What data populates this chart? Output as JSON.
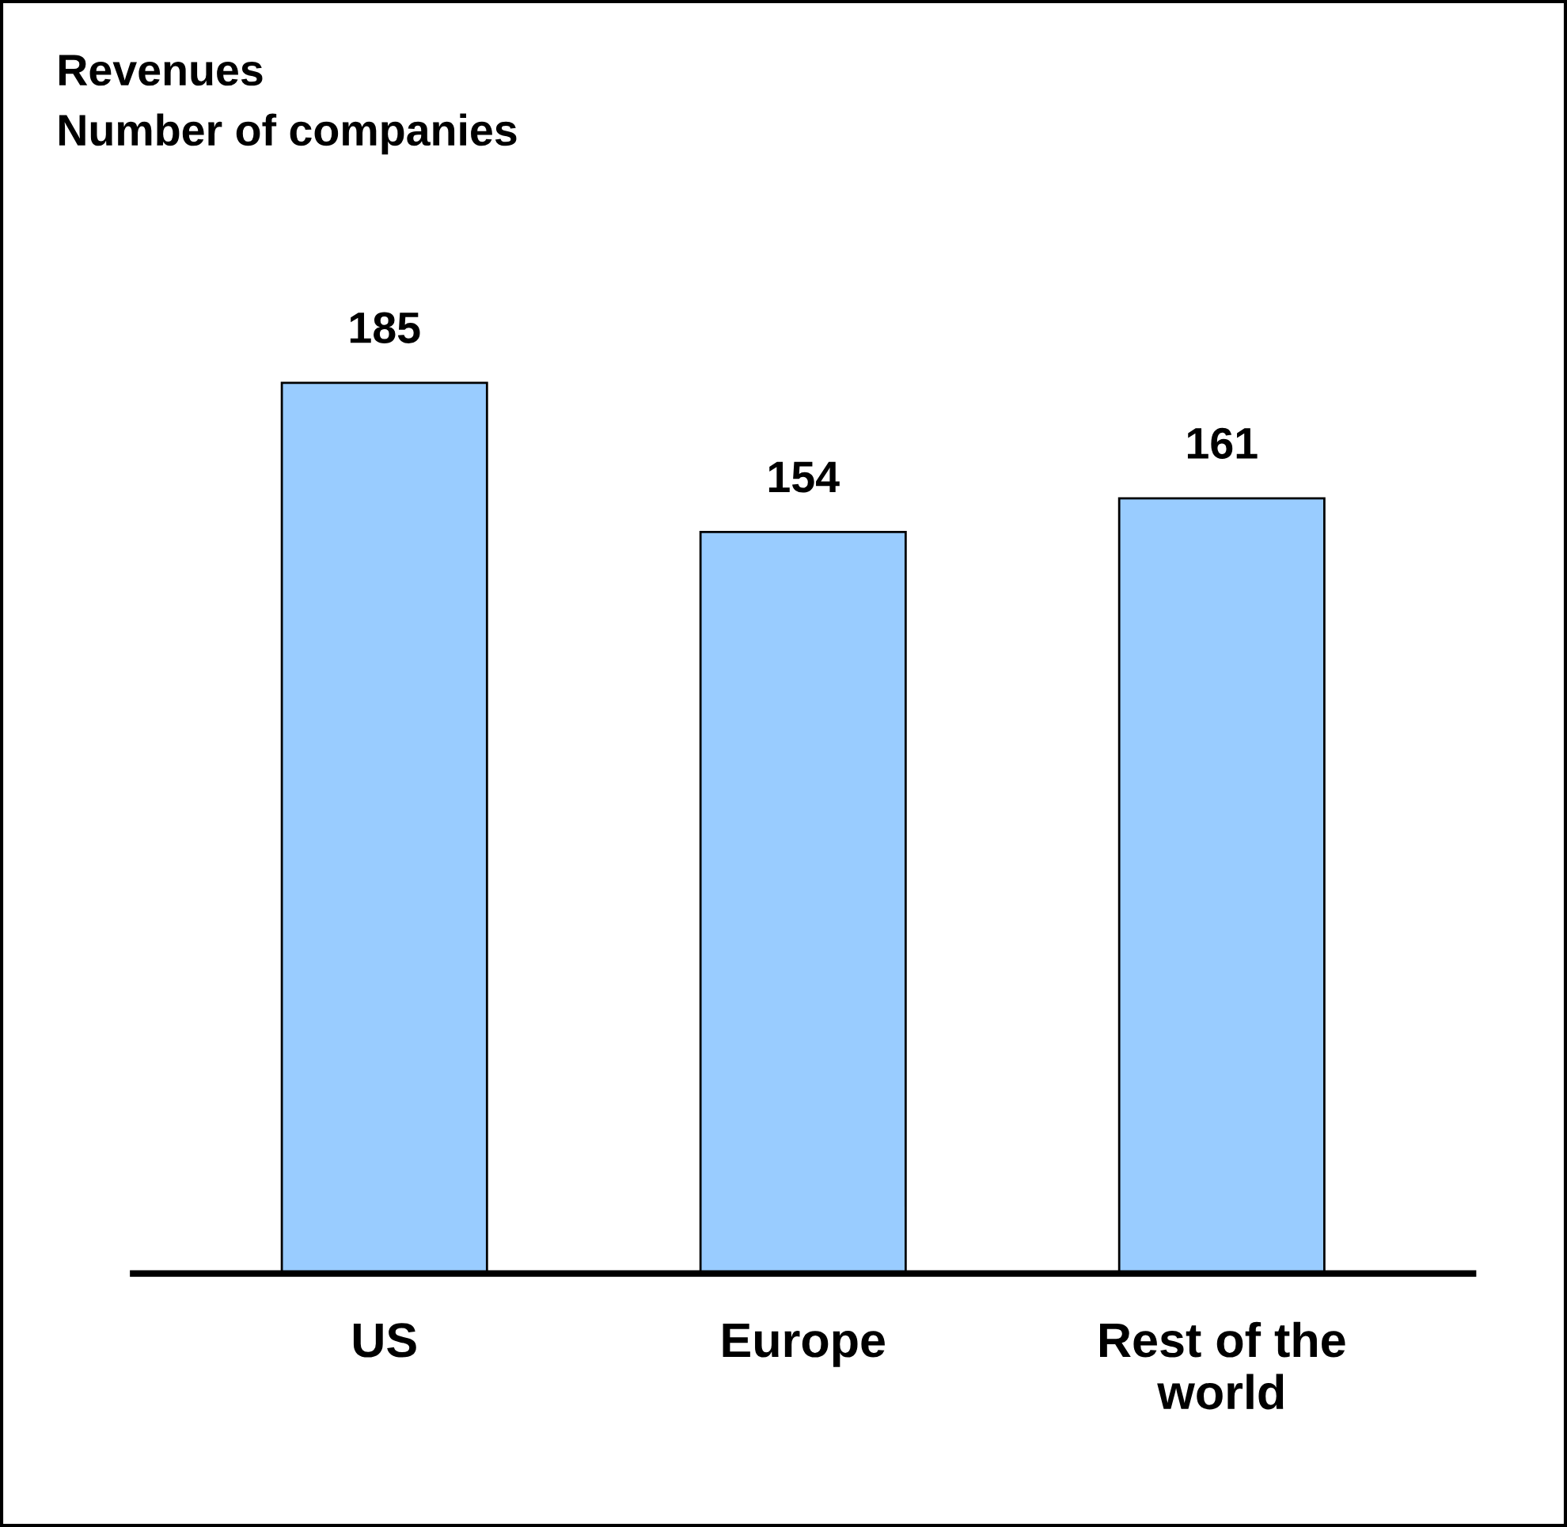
{
  "chart_data": {
    "type": "bar",
    "title": "Revenues\nNumber of companies",
    "categories": [
      "US",
      "Europe",
      "Rest of the\nworld"
    ],
    "values": [
      185,
      154,
      161
    ],
    "color": "#99ccff",
    "data_labels": true,
    "grid": false,
    "legend": false,
    "tick_labels": "x"
  }
}
